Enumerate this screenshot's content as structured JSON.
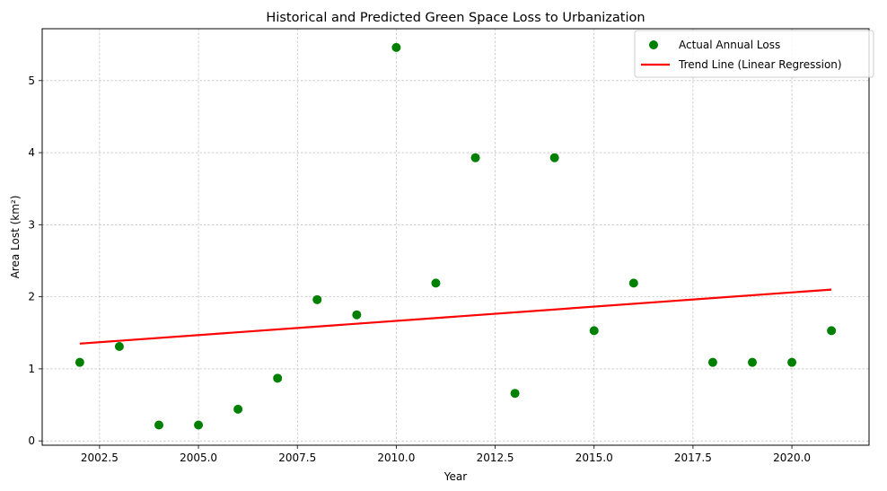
{
  "chart_data": {
    "type": "scatter",
    "title": "Historical and Predicted Green Space Loss to Urbanization",
    "xlabel": "Year",
    "ylabel": "Area Lost (km²)",
    "xlim": [
      2001.05,
      2021.95
    ],
    "ylim": [
      -0.06,
      5.72
    ],
    "xticks": [
      2002.5,
      2005.0,
      2007.5,
      2010.0,
      2012.5,
      2015.0,
      2017.5,
      2020.0
    ],
    "xtick_labels": [
      "2002.5",
      "2005.0",
      "2007.5",
      "2010.0",
      "2012.5",
      "2015.0",
      "2017.5",
      "2020.0"
    ],
    "yticks": [
      0,
      1,
      2,
      3,
      4,
      5
    ],
    "ytick_labels": [
      "0",
      "1",
      "2",
      "3",
      "4",
      "5"
    ],
    "grid": true,
    "legend_position": "top-right",
    "series": [
      {
        "name": "Actual Annual Loss",
        "kind": "scatter",
        "color": "#008000",
        "x": [
          2002,
          2003,
          2004,
          2005,
          2006,
          2007,
          2008,
          2009,
          2010,
          2011,
          2012,
          2013,
          2014,
          2015,
          2016,
          2018,
          2019,
          2020,
          2021
        ],
        "y": [
          1.09,
          1.31,
          0.22,
          0.22,
          0.44,
          0.87,
          1.96,
          1.75,
          5.46,
          2.19,
          3.93,
          0.66,
          3.93,
          1.53,
          2.19,
          1.09,
          1.09,
          1.09,
          1.53
        ]
      },
      {
        "name": "Trend Line (Linear Regression)",
        "kind": "line",
        "color": "#ff0000",
        "x": [
          2002,
          2021
        ],
        "y": [
          1.35,
          2.1
        ]
      }
    ]
  }
}
